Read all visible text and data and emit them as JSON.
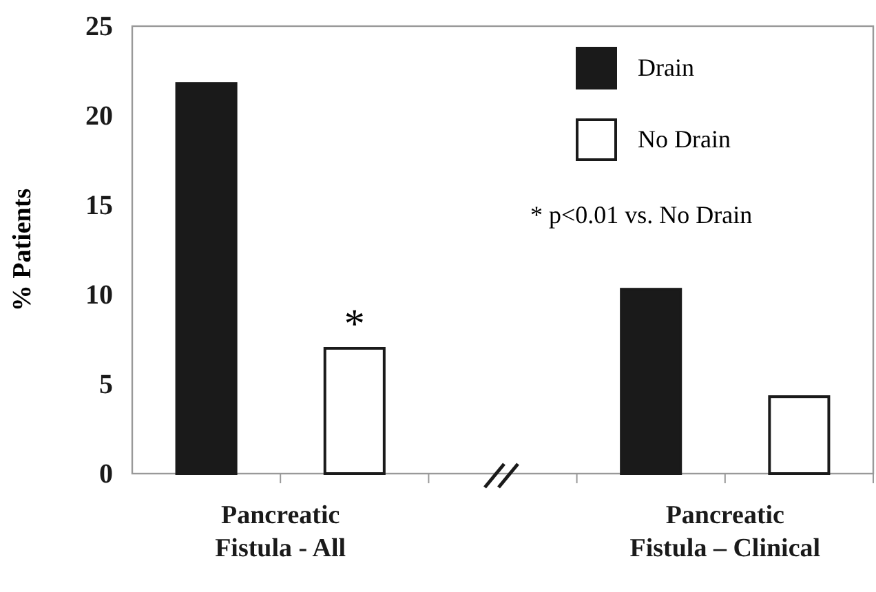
{
  "chart_data": {
    "type": "bar",
    "ylabel": "% Patients",
    "categories": [
      "Pancreatic Fistula - All",
      "Pancreatic Fistula – Clinical"
    ],
    "series": [
      {
        "name": "Drain",
        "color": "#1a1a1a",
        "values": [
          21.8,
          10.3
        ]
      },
      {
        "name": "No Drain",
        "color": "#ffffff",
        "values": [
          7.0,
          4.3
        ]
      }
    ],
    "ylim": [
      0,
      25
    ],
    "yticks": [
      0,
      5,
      10,
      15,
      20,
      25
    ],
    "legend": "top right",
    "grid": false,
    "annotations": [
      "*",
      "* p<0.01 vs. No Drain"
    ]
  }
}
